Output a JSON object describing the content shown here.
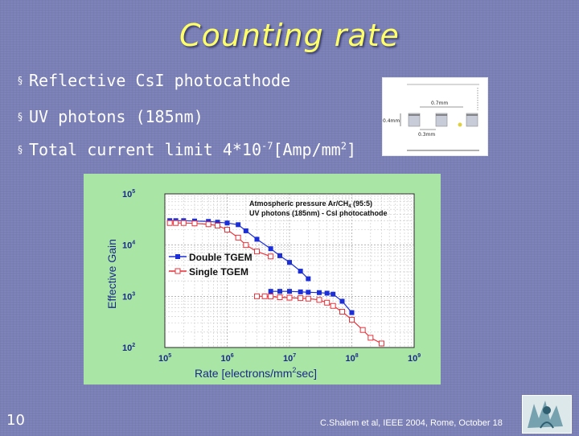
{
  "slide": {
    "title": "Counting rate",
    "page_number": "10",
    "credit": "C.Shalem et al,  IEEE 2004, Rome, October 18"
  },
  "bullets": [
    {
      "text": "Reflective CsI photocathode"
    },
    {
      "text": "UV photons (185nm)"
    },
    {
      "pre": "Total current limit 4*10",
      "sup1": "-7",
      "mid": "[Amp/mm",
      "sup2": "2",
      "post": "]"
    }
  ],
  "bullet_marker": "§",
  "inset_figure": {
    "labels": [
      "0.7mm",
      "0.4mm",
      "0.3mm"
    ]
  },
  "chart_data": {
    "type": "line",
    "xscale": "log",
    "yscale": "log",
    "xlim": [
      100000,
      1000000000
    ],
    "ylim": [
      100,
      100000
    ],
    "x_tick_labels": [
      {
        "base": "10",
        "exp": "5"
      },
      {
        "base": "10",
        "exp": "6"
      },
      {
        "base": "10",
        "exp": "7"
      },
      {
        "base": "10",
        "exp": "8"
      },
      {
        "base": "10",
        "exp": "9"
      }
    ],
    "y_tick_labels": [
      {
        "base": "10",
        "exp": "2"
      },
      {
        "base": "10",
        "exp": "3"
      },
      {
        "base": "10",
        "exp": "4"
      },
      {
        "base": "10",
        "exp": "5"
      }
    ],
    "xlabel": {
      "pre": "Rate [electrons/mm",
      "sup": "2",
      "post": "sec]"
    },
    "ylabel": "Effective Gain",
    "annotation": {
      "line1": "Atmospheric pressure Ar/CH",
      "sub": "4",
      "line1_post": " (95:5)",
      "line2": "UV photons (185nm) - CsI photocathode"
    },
    "legend_position": "center-left",
    "series": [
      {
        "name": "Double TGEM",
        "color": "#1c2fd6",
        "marker": "square-filled",
        "points": [
          [
            120000,
            30000
          ],
          [
            150000,
            30000
          ],
          [
            200000,
            30000
          ],
          [
            300000,
            29500
          ],
          [
            500000,
            29000
          ],
          [
            700000,
            28000
          ],
          [
            1000000,
            27000
          ],
          [
            1500000,
            25000
          ],
          [
            2000000,
            19000
          ],
          [
            3000000,
            13000
          ],
          [
            5000000,
            8500
          ],
          [
            7000000,
            6200
          ],
          [
            10000000,
            4600
          ],
          [
            15000000,
            3100
          ],
          [
            20000000,
            2200
          ]
        ]
      },
      {
        "name": "Double TGEM",
        "color": "#1c2fd6",
        "marker": "square-filled",
        "points": [
          [
            5000000,
            1250
          ],
          [
            7000000,
            1250
          ],
          [
            10000000,
            1250
          ],
          [
            15000000,
            1220
          ],
          [
            20000000,
            1200
          ],
          [
            30000000,
            1180
          ],
          [
            40000000,
            1150
          ],
          [
            50000000,
            1100
          ],
          [
            70000000,
            800
          ],
          [
            100000000,
            480
          ]
        ]
      },
      {
        "name": "Single TGEM",
        "color": "#e8333b",
        "marker": "square-open",
        "points": [
          [
            120000,
            27000
          ],
          [
            150000,
            27000
          ],
          [
            200000,
            27000
          ],
          [
            300000,
            26500
          ],
          [
            500000,
            25500
          ],
          [
            700000,
            24000
          ],
          [
            1000000,
            20000
          ],
          [
            1500000,
            14000
          ],
          [
            2000000,
            10000
          ],
          [
            3000000,
            7500
          ],
          [
            5000000,
            6000
          ]
        ]
      },
      {
        "name": "Single TGEM",
        "color": "#e8333b",
        "marker": "square-open",
        "points": [
          [
            3000000,
            1000
          ],
          [
            4000000,
            1000
          ],
          [
            5000000,
            990
          ],
          [
            7000000,
            960
          ],
          [
            10000000,
            940
          ],
          [
            15000000,
            920
          ],
          [
            20000000,
            900
          ],
          [
            30000000,
            850
          ],
          [
            40000000,
            750
          ],
          [
            50000000,
            650
          ],
          [
            70000000,
            500
          ],
          [
            100000000,
            350
          ],
          [
            150000000,
            220
          ],
          [
            200000000,
            155
          ],
          [
            300000000,
            120
          ]
        ]
      }
    ]
  },
  "colors": {
    "background": "#7a7fb6",
    "title": "#ffff66",
    "text": "#ffffff",
    "chart_bg": "#a9e5a4"
  },
  "logo": {
    "icon": "conference-logo-icon"
  }
}
